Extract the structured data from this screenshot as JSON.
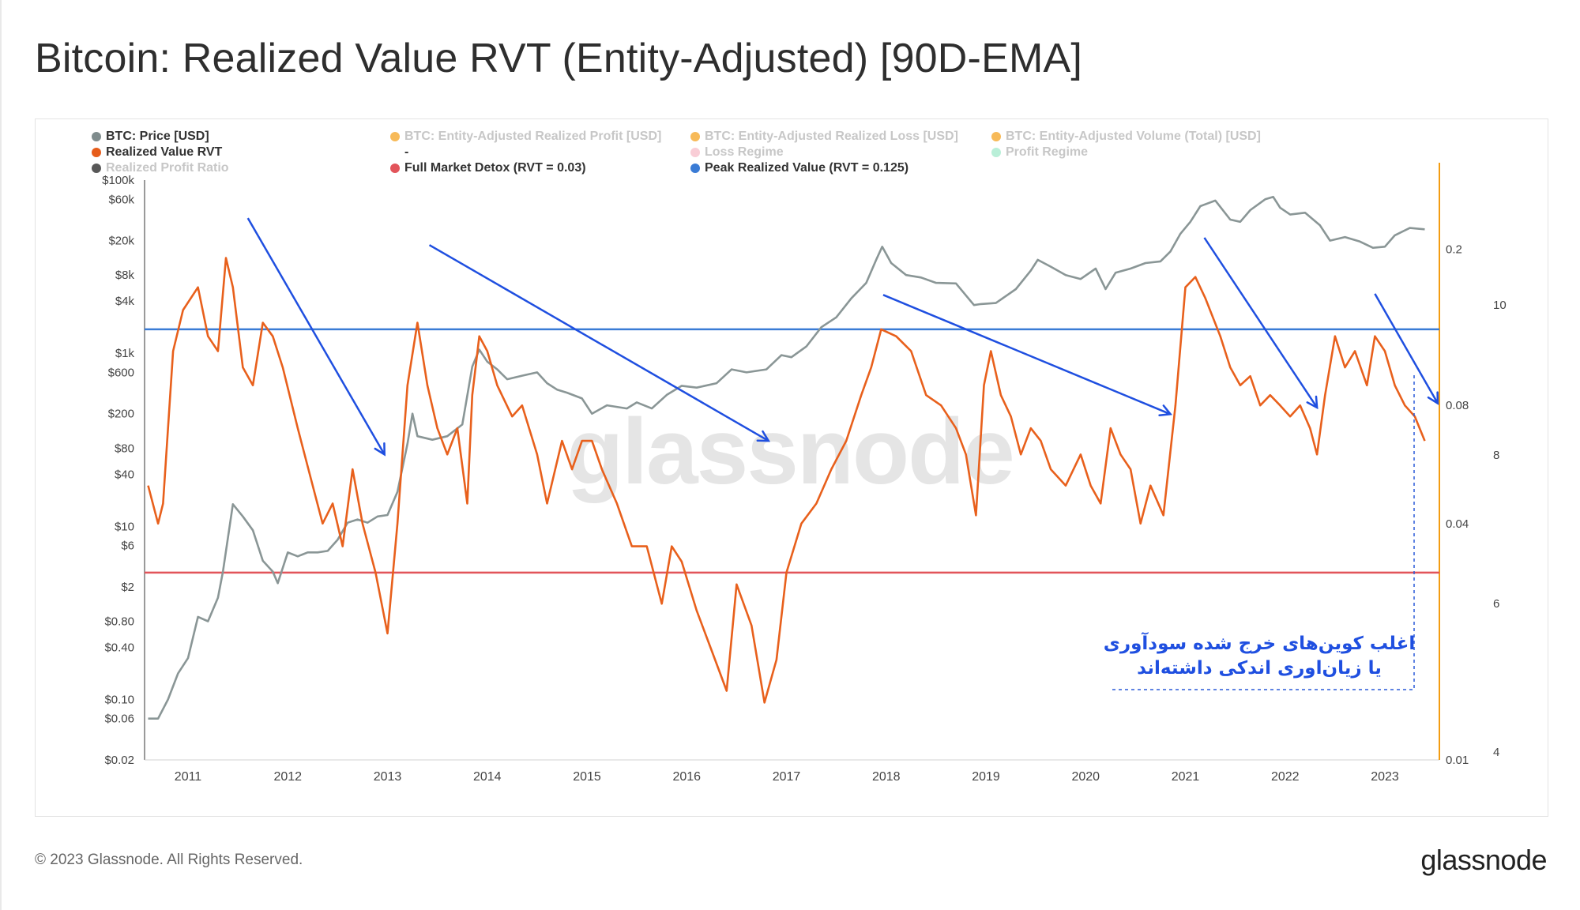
{
  "page": {
    "title": "Bitcoin: Realized Value RVT (Entity-Adjusted) [90D-EMA]",
    "copyright": "© 2023 Glassnode. All Rights Reserved.",
    "brand": "glassnode",
    "watermark": "glassnode"
  },
  "legend": [
    {
      "label": "BTC: Price [USD]",
      "color": "#7f8c8d",
      "faded": false
    },
    {
      "label": "BTC: Entity-Adjusted Realized Profit [USD]",
      "color": "#f39c12",
      "faded": true
    },
    {
      "label": "BTC: Entity-Adjusted Realized Loss [USD]",
      "color": "#f39c12",
      "faded": true
    },
    {
      "label": "BTC: Entity-Adjusted Volume (Total) [USD]",
      "color": "#f39c12",
      "faded": true
    },
    {
      "label": "Realized Value RVT",
      "color": "#e65c1a",
      "faded": false
    },
    {
      "label": "-",
      "color": "",
      "faded": false
    },
    {
      "label": "Loss Regime",
      "color": "#f6b8c4",
      "faded": true
    },
    {
      "label": "Profit Regime",
      "color": "#9be8c8",
      "faded": true
    },
    {
      "label": "Realized Profit Ratio",
      "color": "#111111",
      "faded": true
    },
    {
      "label": "Full Market Detox (RVT = 0.03)",
      "color": "#e2545a",
      "faded": false
    },
    {
      "label": "Peak Realized Value (RVT = 0.125)",
      "color": "#3a7bd5",
      "faded": false
    }
  ],
  "annotation": {
    "line1": "اغلب کوین‌های خرج شده سودآوری",
    "line2": "یا زیان‌اوری اندکی داشته‌اند"
  },
  "chart_data": {
    "type": "line",
    "title": "Bitcoin: Realized Value RVT (Entity-Adjusted) [90D-EMA]",
    "colors": {
      "price": "#8a9696",
      "rvt": "#e8601c",
      "detox": "#e2545a",
      "peak": "#3a7bd5",
      "arrow": "#1f4fe0",
      "right_axis": "#f39c12"
    },
    "x_ticks": [
      "2011",
      "2012",
      "2013",
      "2014",
      "2015",
      "2016",
      "2017",
      "2018",
      "2019",
      "2020",
      "2021",
      "2022",
      "2023"
    ],
    "x_range": [
      2010.55,
      2023.45
    ],
    "y_left": {
      "scale": "log",
      "range": [
        0.02,
        100000
      ],
      "ticks": [
        {
          "v": 100000,
          "l": "$100k"
        },
        {
          "v": 60000,
          "l": "$60k"
        },
        {
          "v": 20000,
          "l": "$20k"
        },
        {
          "v": 8000,
          "l": "$8k"
        },
        {
          "v": 4000,
          "l": "$4k"
        },
        {
          "v": 1000,
          "l": "$1k"
        },
        {
          "v": 600,
          "l": "$600"
        },
        {
          "v": 200,
          "l": "$200"
        },
        {
          "v": 80,
          "l": "$80"
        },
        {
          "v": 40,
          "l": "$40"
        },
        {
          "v": 10,
          "l": "$10"
        },
        {
          "v": 6,
          "l": "$6"
        },
        {
          "v": 2,
          "l": "$2"
        },
        {
          "v": 0.8,
          "l": "$0.80"
        },
        {
          "v": 0.4,
          "l": "$0.40"
        },
        {
          "v": 0.1,
          "l": "$0.10"
        },
        {
          "v": 0.06,
          "l": "$0.06"
        },
        {
          "v": 0.02,
          "l": "$0.02"
        }
      ]
    },
    "y_right1": {
      "scale": "log",
      "range": [
        0.01,
        0.3
      ],
      "ticks": [
        {
          "v": 0.2,
          "l": "0.2"
        },
        {
          "v": 0.08,
          "l": "0.08"
        },
        {
          "v": 0.04,
          "l": "0.04"
        },
        {
          "v": 0.01,
          "l": "0.01"
        }
      ]
    },
    "y_right2": {
      "ticks": [
        "10",
        "8",
        "6",
        "4"
      ]
    },
    "thresholds": [
      {
        "name": "Full Market Detox (RVT = 0.03)",
        "value": 0.03
      },
      {
        "name": "Peak Realized Value (RVT = 0.125)",
        "value": 0.125
      }
    ],
    "series": [
      {
        "name": "BTC: Price [USD]",
        "axis": "left",
        "points": [
          [
            2010.6,
            0.06
          ],
          [
            2010.7,
            0.06
          ],
          [
            2010.8,
            0.1
          ],
          [
            2010.9,
            0.2
          ],
          [
            2011.0,
            0.3
          ],
          [
            2011.1,
            0.9
          ],
          [
            2011.2,
            0.8
          ],
          [
            2011.3,
            1.5
          ],
          [
            2011.35,
            3
          ],
          [
            2011.45,
            18
          ],
          [
            2011.55,
            13
          ],
          [
            2011.65,
            9
          ],
          [
            2011.75,
            4
          ],
          [
            2011.85,
            3
          ],
          [
            2011.9,
            2.2
          ],
          [
            2012.0,
            5
          ],
          [
            2012.1,
            4.5
          ],
          [
            2012.2,
            5
          ],
          [
            2012.3,
            5
          ],
          [
            2012.4,
            5.2
          ],
          [
            2012.5,
            7
          ],
          [
            2012.6,
            11
          ],
          [
            2012.7,
            12
          ],
          [
            2012.8,
            11
          ],
          [
            2012.9,
            13
          ],
          [
            2013.0,
            13.5
          ],
          [
            2013.1,
            25
          ],
          [
            2013.2,
            90
          ],
          [
            2013.25,
            200
          ],
          [
            2013.3,
            110
          ],
          [
            2013.45,
            100
          ],
          [
            2013.6,
            110
          ],
          [
            2013.75,
            150
          ],
          [
            2013.85,
            700
          ],
          [
            2013.92,
            1100
          ],
          [
            2014.0,
            800
          ],
          [
            2014.1,
            650
          ],
          [
            2014.2,
            500
          ],
          [
            2014.35,
            550
          ],
          [
            2014.5,
            600
          ],
          [
            2014.6,
            450
          ],
          [
            2014.7,
            380
          ],
          [
            2014.8,
            350
          ],
          [
            2014.95,
            300
          ],
          [
            2015.05,
            200
          ],
          [
            2015.2,
            250
          ],
          [
            2015.4,
            230
          ],
          [
            2015.5,
            270
          ],
          [
            2015.65,
            230
          ],
          [
            2015.8,
            330
          ],
          [
            2015.95,
            420
          ],
          [
            2016.1,
            400
          ],
          [
            2016.3,
            450
          ],
          [
            2016.45,
            650
          ],
          [
            2016.6,
            600
          ],
          [
            2016.8,
            650
          ],
          [
            2016.95,
            950
          ],
          [
            2017.05,
            900
          ],
          [
            2017.2,
            1200
          ],
          [
            2017.35,
            2000
          ],
          [
            2017.5,
            2600
          ],
          [
            2017.65,
            4300
          ],
          [
            2017.8,
            6500
          ],
          [
            2017.9,
            12000
          ],
          [
            2017.96,
            17000
          ],
          [
            2018.05,
            11000
          ],
          [
            2018.2,
            8000
          ],
          [
            2018.35,
            7500
          ],
          [
            2018.5,
            6500
          ],
          [
            2018.7,
            6400
          ],
          [
            2018.88,
            3600
          ],
          [
            2018.95,
            3700
          ],
          [
            2019.1,
            3800
          ],
          [
            2019.3,
            5500
          ],
          [
            2019.45,
            9000
          ],
          [
            2019.52,
            12000
          ],
          [
            2019.65,
            10000
          ],
          [
            2019.8,
            8000
          ],
          [
            2019.95,
            7200
          ],
          [
            2020.1,
            9500
          ],
          [
            2020.2,
            5500
          ],
          [
            2020.3,
            8500
          ],
          [
            2020.45,
            9500
          ],
          [
            2020.6,
            11000
          ],
          [
            2020.75,
            11500
          ],
          [
            2020.85,
            15000
          ],
          [
            2020.95,
            24000
          ],
          [
            2021.05,
            33000
          ],
          [
            2021.15,
            50000
          ],
          [
            2021.3,
            58000
          ],
          [
            2021.45,
            35000
          ],
          [
            2021.55,
            33000
          ],
          [
            2021.65,
            45000
          ],
          [
            2021.8,
            60000
          ],
          [
            2021.88,
            64000
          ],
          [
            2021.95,
            48000
          ],
          [
            2022.05,
            40000
          ],
          [
            2022.2,
            42000
          ],
          [
            2022.35,
            30000
          ],
          [
            2022.45,
            20000
          ],
          [
            2022.6,
            22000
          ],
          [
            2022.75,
            19500
          ],
          [
            2022.88,
            16500
          ],
          [
            2023.0,
            17000
          ],
          [
            2023.1,
            23000
          ],
          [
            2023.25,
            28000
          ],
          [
            2023.4,
            27000
          ]
        ]
      },
      {
        "name": "Realized Value RVT",
        "axis": "right",
        "points": [
          [
            2010.6,
            0.05
          ],
          [
            2010.7,
            0.04
          ],
          [
            2010.75,
            0.045
          ],
          [
            2010.85,
            0.11
          ],
          [
            2010.95,
            0.14
          ],
          [
            2011.1,
            0.16
          ],
          [
            2011.2,
            0.12
          ],
          [
            2011.3,
            0.11
          ],
          [
            2011.38,
            0.19
          ],
          [
            2011.45,
            0.16
          ],
          [
            2011.55,
            0.1
          ],
          [
            2011.65,
            0.09
          ],
          [
            2011.75,
            0.13
          ],
          [
            2011.85,
            0.12
          ],
          [
            2011.95,
            0.1
          ],
          [
            2012.1,
            0.07
          ],
          [
            2012.25,
            0.05
          ],
          [
            2012.35,
            0.04
          ],
          [
            2012.45,
            0.045
          ],
          [
            2012.55,
            0.035
          ],
          [
            2012.65,
            0.055
          ],
          [
            2012.75,
            0.04
          ],
          [
            2012.88,
            0.03
          ],
          [
            2013.0,
            0.021
          ],
          [
            2013.1,
            0.04
          ],
          [
            2013.2,
            0.09
          ],
          [
            2013.3,
            0.13
          ],
          [
            2013.4,
            0.09
          ],
          [
            2013.5,
            0.07
          ],
          [
            2013.6,
            0.06
          ],
          [
            2013.7,
            0.07
          ],
          [
            2013.8,
            0.045
          ],
          [
            2013.85,
            0.085
          ],
          [
            2013.92,
            0.12
          ],
          [
            2014.0,
            0.11
          ],
          [
            2014.1,
            0.09
          ],
          [
            2014.25,
            0.075
          ],
          [
            2014.35,
            0.08
          ],
          [
            2014.5,
            0.06
          ],
          [
            2014.6,
            0.045
          ],
          [
            2014.75,
            0.065
          ],
          [
            2014.85,
            0.055
          ],
          [
            2014.95,
            0.065
          ],
          [
            2015.05,
            0.065
          ],
          [
            2015.15,
            0.055
          ],
          [
            2015.3,
            0.045
          ],
          [
            2015.45,
            0.035
          ],
          [
            2015.6,
            0.035
          ],
          [
            2015.75,
            0.025
          ],
          [
            2015.85,
            0.035
          ],
          [
            2015.95,
            0.032
          ],
          [
            2016.1,
            0.024
          ],
          [
            2016.25,
            0.019
          ],
          [
            2016.4,
            0.015
          ],
          [
            2016.5,
            0.028
          ],
          [
            2016.65,
            0.022
          ],
          [
            2016.78,
            0.014
          ],
          [
            2016.9,
            0.018
          ],
          [
            2017.0,
            0.03
          ],
          [
            2017.15,
            0.04
          ],
          [
            2017.3,
            0.045
          ],
          [
            2017.45,
            0.055
          ],
          [
            2017.6,
            0.065
          ],
          [
            2017.75,
            0.085
          ],
          [
            2017.85,
            0.1
          ],
          [
            2017.95,
            0.125
          ],
          [
            2018.1,
            0.12
          ],
          [
            2018.25,
            0.11
          ],
          [
            2018.4,
            0.085
          ],
          [
            2018.55,
            0.08
          ],
          [
            2018.7,
            0.07
          ],
          [
            2018.8,
            0.06
          ],
          [
            2018.9,
            0.042
          ],
          [
            2018.98,
            0.09
          ],
          [
            2019.05,
            0.11
          ],
          [
            2019.15,
            0.085
          ],
          [
            2019.25,
            0.075
          ],
          [
            2019.35,
            0.06
          ],
          [
            2019.45,
            0.07
          ],
          [
            2019.55,
            0.065
          ],
          [
            2019.65,
            0.055
          ],
          [
            2019.8,
            0.05
          ],
          [
            2019.95,
            0.06
          ],
          [
            2020.05,
            0.05
          ],
          [
            2020.15,
            0.045
          ],
          [
            2020.25,
            0.07
          ],
          [
            2020.35,
            0.06
          ],
          [
            2020.45,
            0.055
          ],
          [
            2020.55,
            0.04
          ],
          [
            2020.65,
            0.05
          ],
          [
            2020.78,
            0.042
          ],
          [
            2020.9,
            0.08
          ],
          [
            2021.0,
            0.16
          ],
          [
            2021.1,
            0.17
          ],
          [
            2021.2,
            0.15
          ],
          [
            2021.35,
            0.12
          ],
          [
            2021.45,
            0.1
          ],
          [
            2021.55,
            0.09
          ],
          [
            2021.65,
            0.095
          ],
          [
            2021.75,
            0.08
          ],
          [
            2021.85,
            0.085
          ],
          [
            2021.95,
            0.08
          ],
          [
            2022.05,
            0.075
          ],
          [
            2022.15,
            0.08
          ],
          [
            2022.25,
            0.07
          ],
          [
            2022.32,
            0.06
          ],
          [
            2022.4,
            0.085
          ],
          [
            2022.5,
            0.12
          ],
          [
            2022.6,
            0.1
          ],
          [
            2022.7,
            0.11
          ],
          [
            2022.82,
            0.09
          ],
          [
            2022.9,
            0.12
          ],
          [
            2023.0,
            0.11
          ],
          [
            2023.1,
            0.09
          ],
          [
            2023.2,
            0.08
          ],
          [
            2023.3,
            0.075
          ],
          [
            2023.4,
            0.065
          ]
        ]
      }
    ],
    "trend_arrows": [
      [
        [
          2011.6,
          0.24
        ],
        [
          2012.97,
          0.06
        ]
      ],
      [
        [
          2013.42,
          0.205
        ],
        [
          2016.82,
          0.065
        ]
      ],
      [
        [
          2017.97,
          0.153
        ],
        [
          2020.85,
          0.076
        ]
      ],
      [
        [
          2021.19,
          0.214
        ],
        [
          2022.32,
          0.079
        ]
      ],
      [
        [
          2022.9,
          0.154
        ],
        [
          2023.53,
          0.081
        ]
      ]
    ]
  }
}
